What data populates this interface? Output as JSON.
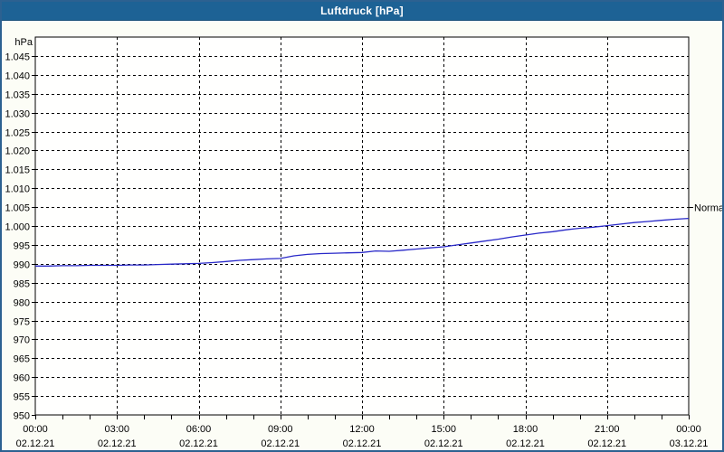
{
  "window": {
    "title": "Luftdruck [hPa]"
  },
  "colors": {
    "titlebar_bg": "#1d6295",
    "titlebar_text": "#ffffff",
    "frame_border": "#2c6191",
    "page_bg": "#fcfdf6",
    "plot_bg": "#fffffe",
    "grid": "#000000",
    "axis": "#000000",
    "series": "#2828c8",
    "label_text": "#000000"
  },
  "chart_data": {
    "type": "line",
    "title": "Luftdruck [hPa]",
    "ylabel_unit": "hPa",
    "ylim": [
      950,
      1050
    ],
    "xlim_hours": [
      0,
      24
    ],
    "grid": "dashed",
    "y_ticks": [
      {
        "v": 950,
        "label": "950"
      },
      {
        "v": 955,
        "label": "955"
      },
      {
        "v": 960,
        "label": "960"
      },
      {
        "v": 965,
        "label": "965"
      },
      {
        "v": 970,
        "label": "970"
      },
      {
        "v": 975,
        "label": "975"
      },
      {
        "v": 980,
        "label": "980"
      },
      {
        "v": 985,
        "label": "985"
      },
      {
        "v": 990,
        "label": "990"
      },
      {
        "v": 995,
        "label": "995"
      },
      {
        "v": 1000,
        "label": "1.000"
      },
      {
        "v": 1005,
        "label": "1.005"
      },
      {
        "v": 1010,
        "label": "1.010"
      },
      {
        "v": 1015,
        "label": "1.015"
      },
      {
        "v": 1020,
        "label": "1.020"
      },
      {
        "v": 1025,
        "label": "1.025"
      },
      {
        "v": 1030,
        "label": "1.030"
      },
      {
        "v": 1035,
        "label": "1.035"
      },
      {
        "v": 1040,
        "label": "1.040"
      },
      {
        "v": 1045,
        "label": "1.045"
      }
    ],
    "x_ticks": [
      {
        "h": 0,
        "time": "00:00",
        "date": "02.12.21"
      },
      {
        "h": 3,
        "time": "03:00",
        "date": "02.12.21"
      },
      {
        "h": 6,
        "time": "06:00",
        "date": "02.12.21"
      },
      {
        "h": 9,
        "time": "09:00",
        "date": "02.12.21"
      },
      {
        "h": 12,
        "time": "12:00",
        "date": "02.12.21"
      },
      {
        "h": 15,
        "time": "15:00",
        "date": "02.12.21"
      },
      {
        "h": 18,
        "time": "18:00",
        "date": "02.12.21"
      },
      {
        "h": 21,
        "time": "21:00",
        "date": "02.12.21"
      },
      {
        "h": 24,
        "time": "00:00",
        "date": "03.12.21"
      }
    ],
    "minor_tick_step_hours": 1,
    "annotation": {
      "label": "Normal",
      "value": 1005
    },
    "series": [
      {
        "name": "Luftdruck",
        "points": [
          [
            0,
            989.4
          ],
          [
            0.5,
            989.4
          ],
          [
            1,
            989.5
          ],
          [
            1.5,
            989.5
          ],
          [
            2,
            989.6
          ],
          [
            2.5,
            989.6
          ],
          [
            3,
            989.6
          ],
          [
            3.5,
            989.7
          ],
          [
            4,
            989.7
          ],
          [
            4.5,
            989.8
          ],
          [
            5,
            989.9
          ],
          [
            5.5,
            990.0
          ],
          [
            6,
            990.1
          ],
          [
            6.5,
            990.3
          ],
          [
            7,
            990.6
          ],
          [
            7.5,
            990.9
          ],
          [
            8,
            991.1
          ],
          [
            8.5,
            991.3
          ],
          [
            9,
            991.4
          ],
          [
            9.5,
            992.1
          ],
          [
            10,
            992.5
          ],
          [
            10.5,
            992.7
          ],
          [
            11,
            992.8
          ],
          [
            11.5,
            992.9
          ],
          [
            12,
            993.0
          ],
          [
            12.5,
            993.4
          ],
          [
            13,
            993.3
          ],
          [
            13.5,
            993.6
          ],
          [
            14,
            993.9
          ],
          [
            14.5,
            994.2
          ],
          [
            15,
            994.5
          ],
          [
            15.5,
            995.0
          ],
          [
            16,
            995.5
          ],
          [
            16.5,
            996.0
          ],
          [
            17,
            996.5
          ],
          [
            17.5,
            997.1
          ],
          [
            18,
            997.6
          ],
          [
            18.5,
            998.1
          ],
          [
            19,
            998.5
          ],
          [
            19.5,
            999.0
          ],
          [
            20,
            999.4
          ],
          [
            20.5,
            999.7
          ],
          [
            21,
            1000.1
          ],
          [
            21.5,
            1000.5
          ],
          [
            22,
            1000.9
          ],
          [
            22.5,
            1001.2
          ],
          [
            23,
            1001.5
          ],
          [
            23.5,
            1001.8
          ],
          [
            24,
            1002.0
          ]
        ]
      }
    ]
  }
}
